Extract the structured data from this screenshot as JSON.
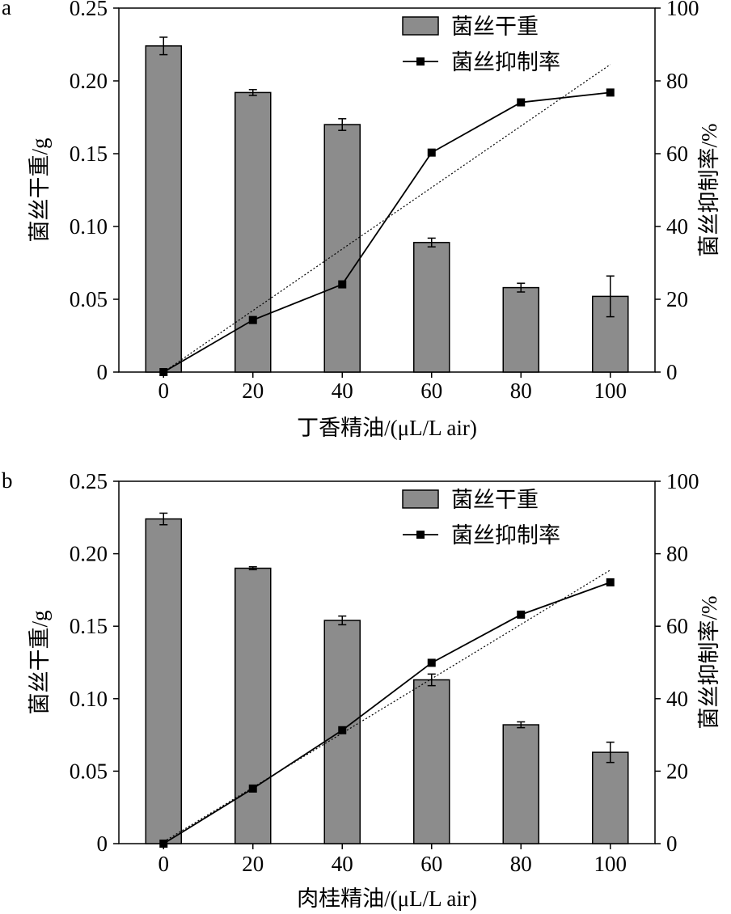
{
  "chart_data": [
    {
      "panel_label": "a",
      "type": "bar+line",
      "categories": [
        "0",
        "20",
        "40",
        "60",
        "80",
        "100"
      ],
      "xlabel": "丁香精油/(μL/L air)",
      "ylabel_left": "菌丝干重/g",
      "ylabel_right": "菌丝抑制率/%",
      "ylim_left": [
        0,
        0.25
      ],
      "yticks_left": [
        "0",
        "0.05",
        "0.10",
        "0.15",
        "0.20",
        "0.25"
      ],
      "ylim_right": [
        0,
        100
      ],
      "yticks_right": [
        "0",
        "20",
        "40",
        "60",
        "80",
        "100"
      ],
      "legend_position": "top-right",
      "series": [
        {
          "name": "菌丝干重",
          "kind": "bar",
          "axis": "left",
          "color": "#8c8c8c",
          "values": [
            0.224,
            0.192,
            0.17,
            0.089,
            0.058,
            0.052
          ],
          "errors": [
            0.006,
            0.002,
            0.004,
            0.003,
            0.003,
            0.014
          ]
        },
        {
          "name": "菌丝抑制率",
          "kind": "line",
          "axis": "right",
          "color": "#000000",
          "values": [
            0,
            14.3,
            24.1,
            60.3,
            74.1,
            76.8
          ]
        }
      ],
      "trendline": {
        "style": "dotted",
        "start": 0,
        "end": 84.5
      }
    },
    {
      "panel_label": "b",
      "type": "bar+line",
      "categories": [
        "0",
        "20",
        "40",
        "60",
        "80",
        "100"
      ],
      "xlabel": "肉桂精油/(μL/L air)",
      "ylabel_left": "菌丝干重/g",
      "ylabel_right": "菌丝抑制率/%",
      "ylim_left": [
        0,
        0.25
      ],
      "yticks_left": [
        "0",
        "0.05",
        "0.10",
        "0.15",
        "0.20",
        "0.25"
      ],
      "ylim_right": [
        0,
        100
      ],
      "yticks_right": [
        "0",
        "20",
        "40",
        "60",
        "80",
        "100"
      ],
      "legend_position": "top-right",
      "series": [
        {
          "name": "菌丝干重",
          "kind": "bar",
          "axis": "left",
          "color": "#8c8c8c",
          "values": [
            0.224,
            0.19,
            0.154,
            0.113,
            0.082,
            0.063
          ],
          "errors": [
            0.004,
            0.001,
            0.003,
            0.004,
            0.002,
            0.007
          ]
        },
        {
          "name": "菌丝抑制率",
          "kind": "line",
          "axis": "right",
          "color": "#000000",
          "values": [
            0,
            15.2,
            31.3,
            49.9,
            63.2,
            72.1
          ]
        }
      ],
      "trendline": {
        "style": "dotted",
        "start": 0.5,
        "end": 75.5
      }
    }
  ]
}
